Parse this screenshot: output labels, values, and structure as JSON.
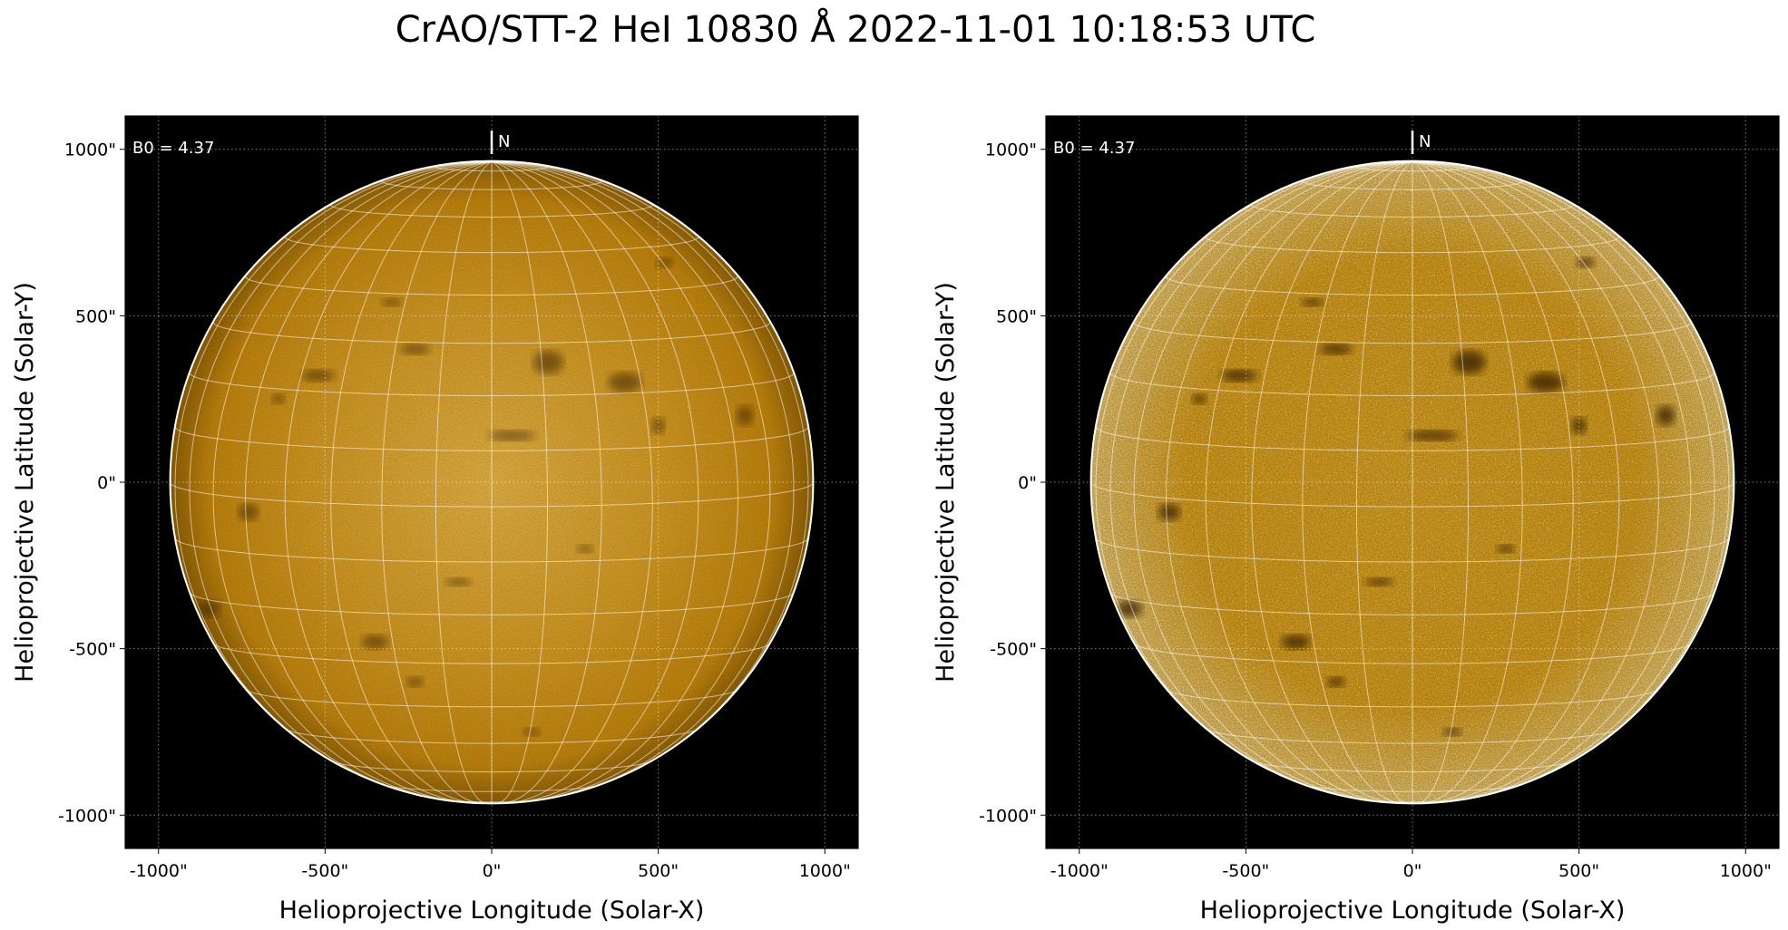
{
  "figure": {
    "title": "CrAO/STT-2 HeI 10830 Å 2022-11-01 10:18:53 UTC",
    "colors": {
      "disk_base": "#d89a1e",
      "disk_bright": "#f2c04a",
      "disk_dark": "#3a2204",
      "background": "#000000",
      "grid": "#ffffff"
    }
  },
  "panels": [
    {
      "id": "left",
      "b0_label": "B0 = 4.37",
      "north_label": "N",
      "xlabel": "Helioprojective Longitude (Solar-X)",
      "ylabel": "Helioprojective Latitude (Solar-Y)",
      "xticks": [
        "-1000\"",
        "-500\"",
        "0\"",
        "500\"",
        "1000\""
      ],
      "yticks": [
        "1000\"",
        "500\"",
        "0\"",
        "-500\"",
        "-1000\""
      ],
      "contrast": "normal"
    },
    {
      "id": "right",
      "b0_label": "B0 = 4.37",
      "north_label": "N",
      "xlabel": "Helioprojective Longitude (Solar-X)",
      "ylabel": "Helioprojective Latitude (Solar-Y)",
      "xticks": [
        "-1000\"",
        "-500\"",
        "0\"",
        "500\"",
        "1000\""
      ],
      "yticks": [
        "1000\"",
        "500\"",
        "0\"",
        "-500\"",
        "-1000\""
      ],
      "contrast": "enhanced"
    }
  ]
}
